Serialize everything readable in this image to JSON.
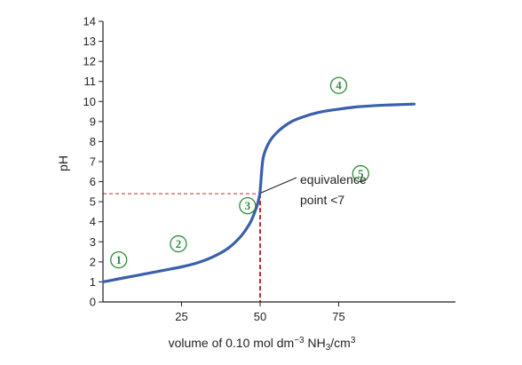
{
  "chart_data": {
    "type": "line",
    "title": "",
    "xlabel": "volume of 0.10 mol dm⁻³ NH₃/cm³",
    "ylabel": "pH",
    "xlim": [
      0,
      100
    ],
    "ylim": [
      0,
      14
    ],
    "x_ticks": [
      25,
      50,
      75
    ],
    "y_ticks": [
      0,
      1,
      2,
      3,
      4,
      5,
      6,
      7,
      8,
      9,
      10,
      11,
      12,
      13,
      14
    ],
    "grid": false,
    "series": [
      {
        "color": "#3a5fad",
        "x": [
          0,
          5,
          10,
          15,
          20,
          25,
          30,
          35,
          40,
          44,
          47,
          49,
          49.8,
          50,
          50.2,
          51,
          53,
          56,
          60,
          65,
          70,
          75,
          80,
          85,
          90,
          95,
          99
        ],
        "y": [
          1.0,
          1.15,
          1.3,
          1.45,
          1.6,
          1.75,
          1.95,
          2.25,
          2.7,
          3.3,
          4.0,
          4.8,
          5.3,
          5.5,
          5.9,
          7.2,
          8.0,
          8.55,
          9.0,
          9.3,
          9.5,
          9.62,
          9.72,
          9.78,
          9.82,
          9.85,
          9.87
        ]
      }
    ],
    "equivalence": {
      "x": 50,
      "y": 5.4,
      "line_color": "#c4262e"
    },
    "annotation": {
      "line1": "equivalence",
      "line2": "point <7"
    },
    "markers": [
      {
        "label": "1",
        "x": 5,
        "y": 2.1
      },
      {
        "label": "2",
        "x": 24,
        "y": 2.9
      },
      {
        "label": "3",
        "x": 46,
        "y": 4.8
      },
      {
        "label": "4",
        "x": 75,
        "y": 10.8
      },
      {
        "label": "5",
        "x": 82,
        "y": 6.4
      }
    ],
    "marker_color": "#2e8b3a"
  }
}
